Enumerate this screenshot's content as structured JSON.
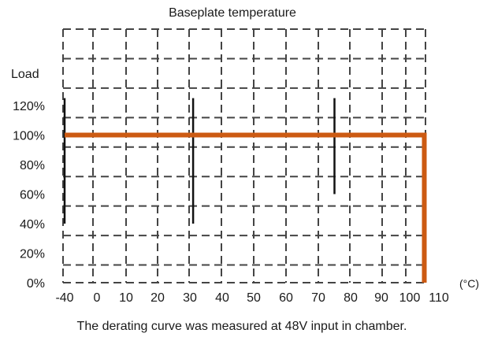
{
  "chart_data": {
    "type": "line",
    "title": "Baseplate temperature",
    "ylabel": "Load",
    "xunit": "(°C)",
    "caption": "The derating curve was measured at 48V input in chamber.",
    "x_ticks": [
      "-40",
      "0",
      "10",
      "20",
      "30",
      "40",
      "50",
      "60",
      "70",
      "80",
      "90",
      "100",
      "110"
    ],
    "y_ticks": [
      "0%",
      "20%",
      "40%",
      "60%",
      "80%",
      "100%",
      "120%"
    ],
    "y_values": [
      0,
      20,
      40,
      60,
      80,
      100,
      120
    ],
    "grid": true,
    "series": [
      {
        "color": "#cc5a12",
        "points": [
          {
            "x": -40,
            "y": 100
          },
          {
            "x": 105,
            "y": 100
          },
          {
            "x": 105,
            "y": 0
          }
        ]
      }
    ],
    "markers": [
      {
        "x": -40,
        "y_from": 40,
        "y_to": 125
      },
      {
        "x": 31,
        "y_from": 40,
        "y_to": 125
      },
      {
        "x": 75,
        "y_from": 60,
        "y_to": 125
      }
    ]
  }
}
